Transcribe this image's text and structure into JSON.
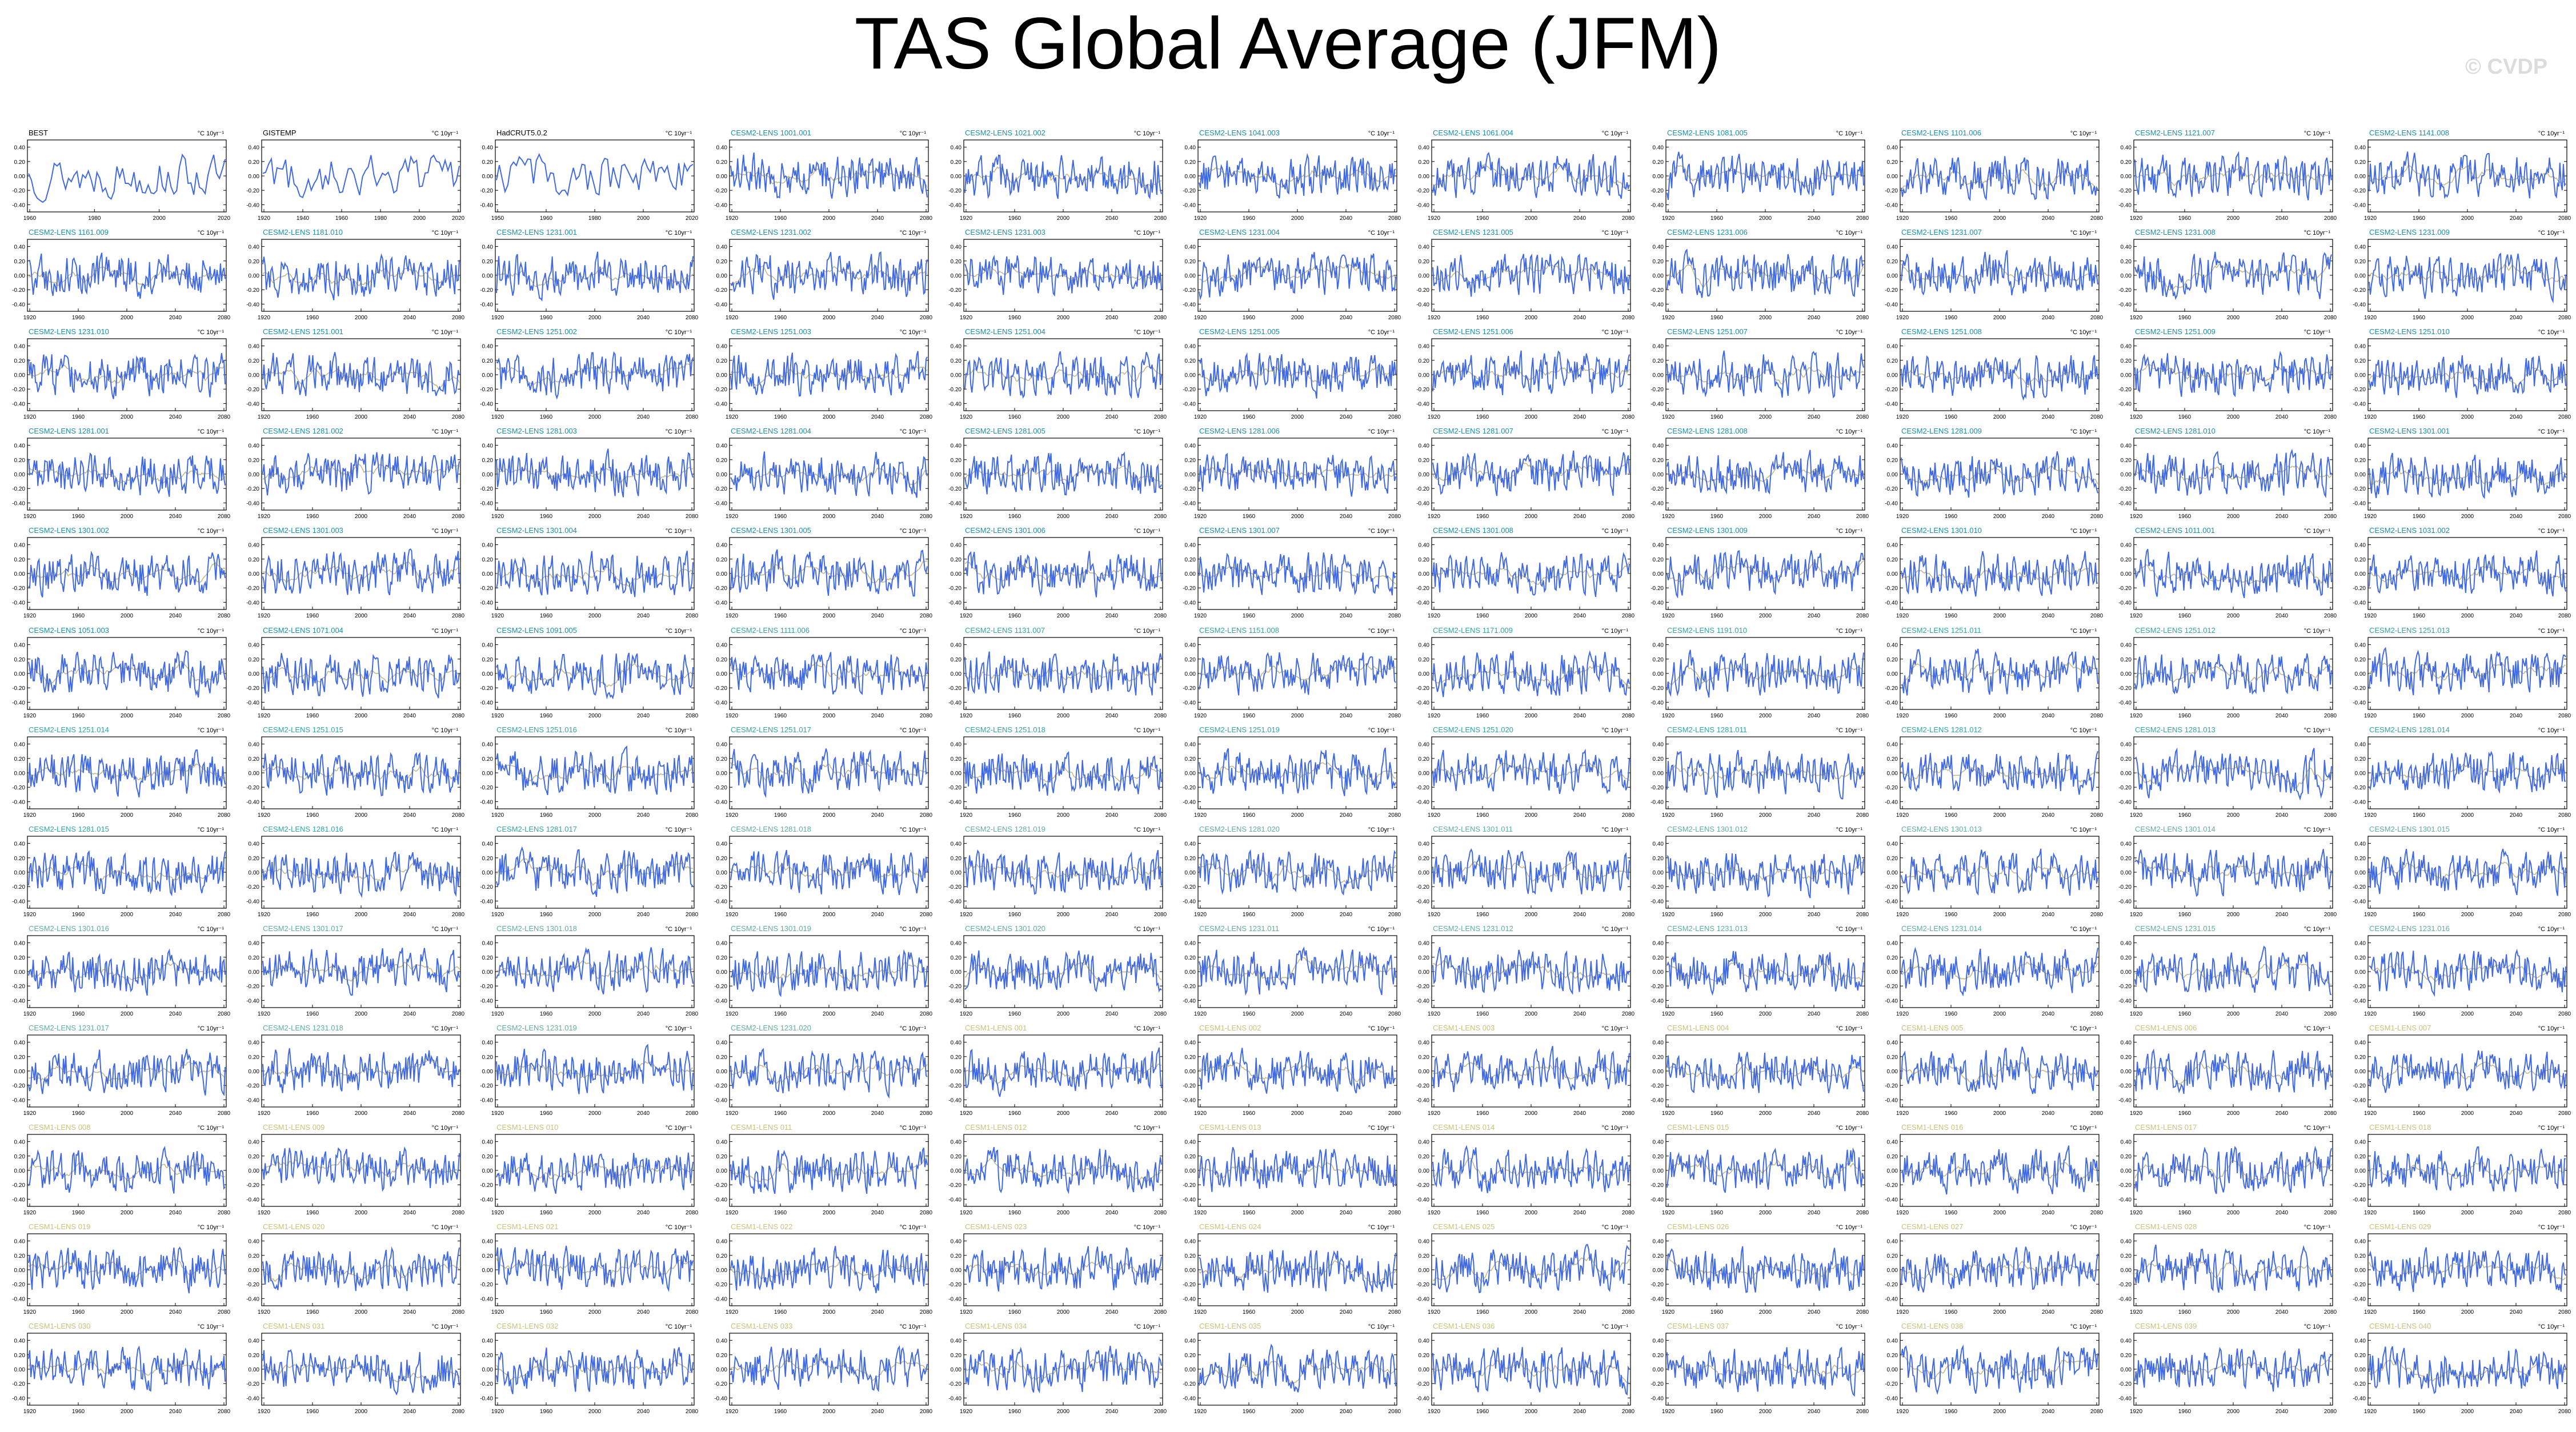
{
  "page": {
    "title": "TAS Global Average (JFM)",
    "watermark": "© CVDP"
  },
  "style": {
    "line_color": "#4169e1",
    "trend_color": "#b8a76a",
    "title_colors": {
      "observations": "#000000",
      "lens_a": "#1a8fa6",
      "lens_b": "#33a3a3",
      "lens_c": "#5fae9a",
      "lens_d": "#c8c27a"
    }
  },
  "chart_data": {
    "type": "line",
    "units": "°C 10yr⁻¹",
    "ylim": [
      -0.5,
      0.5
    ],
    "yticks": [
      "0.40",
      "0.20",
      "0.00",
      "-0.20",
      "-0.40"
    ],
    "grid": false,
    "observed_panels": [
      {
        "title": "BEST",
        "xticks": [
          "1960",
          "1980",
          "2000",
          "2020"
        ]
      },
      {
        "title": "GISTEMP",
        "xticks": [
          "1920",
          "1940",
          "1960",
          "1980",
          "2000",
          "2020"
        ]
      },
      {
        "title": "HadCRUT5.0.2",
        "xticks": [
          "1950",
          "1960",
          "1980",
          "2000",
          "2020"
        ]
      }
    ],
    "model_xticks": [
      "1920",
      "1960",
      "2000",
      "2040",
      "2080"
    ],
    "model_panel_titles": [
      "CESM2-LENS 1001.001",
      "CESM2-LENS 1021.002",
      "CESM2-LENS 1041.003",
      "CESM2-LENS 1061.004",
      "CESM2-LENS 1081.005",
      "CESM2-LENS 1101.006",
      "CESM2-LENS 1121.007",
      "CESM2-LENS 1141.008",
      "CESM2-LENS 1161.009",
      "CESM2-LENS 1181.010",
      "CESM2-LENS 1231.001",
      "CESM2-LENS 1231.002",
      "CESM2-LENS 1231.003",
      "CESM2-LENS 1231.004",
      "CESM2-LENS 1231.005",
      "CESM2-LENS 1231.006",
      "CESM2-LENS 1231.007",
      "CESM2-LENS 1231.008",
      "CESM2-LENS 1231.009",
      "CESM2-LENS 1231.010",
      "CESM2-LENS 1251.001",
      "CESM2-LENS 1251.002",
      "CESM2-LENS 1251.003",
      "CESM2-LENS 1251.004",
      "CESM2-LENS 1251.005",
      "CESM2-LENS 1251.006",
      "CESM2-LENS 1251.007",
      "CESM2-LENS 1251.008",
      "CESM2-LENS 1251.009",
      "CESM2-LENS 1251.010",
      "CESM2-LENS 1281.001",
      "CESM2-LENS 1281.002",
      "CESM2-LENS 1281.003",
      "CESM2-LENS 1281.004",
      "CESM2-LENS 1281.005",
      "CESM2-LENS 1281.006",
      "CESM2-LENS 1281.007",
      "CESM2-LENS 1281.008",
      "CESM2-LENS 1281.009",
      "CESM2-LENS 1281.010",
      "CESM2-LENS 1301.001",
      "CESM2-LENS 1301.002",
      "CESM2-LENS 1301.003",
      "CESM2-LENS 1301.004",
      "CESM2-LENS 1301.005",
      "CESM2-LENS 1301.006",
      "CESM2-LENS 1301.007",
      "CESM2-LENS 1301.008",
      "CESM2-LENS 1301.009",
      "CESM2-LENS 1301.010",
      "CESM2-LENS 1011.001",
      "CESM2-LENS 1031.002",
      "CESM2-LENS 1051.003",
      "CESM2-LENS 1071.004",
      "CESM2-LENS 1091.005",
      "CESM2-LENS 1111.006",
      "CESM2-LENS 1131.007",
      "CESM2-LENS 1151.008",
      "CESM2-LENS 1171.009",
      "CESM2-LENS 1191.010",
      "CESM2-LENS 1251.011",
      "CESM2-LENS 1251.012",
      "CESM2-LENS 1251.013",
      "CESM2-LENS 1251.014",
      "CESM2-LENS 1251.015",
      "CESM2-LENS 1251.016",
      "CESM2-LENS 1251.017",
      "CESM2-LENS 1251.018",
      "CESM2-LENS 1251.019",
      "CESM2-LENS 1251.020",
      "CESM2-LENS 1281.011",
      "CESM2-LENS 1281.012",
      "CESM2-LENS 1281.013",
      "CESM2-LENS 1281.014",
      "CESM2-LENS 1281.015",
      "CESM2-LENS 1281.016",
      "CESM2-LENS 1281.017",
      "CESM2-LENS 1281.018",
      "CESM2-LENS 1281.019",
      "CESM2-LENS 1281.020",
      "CESM2-LENS 1301.011",
      "CESM2-LENS 1301.012",
      "CESM2-LENS 1301.013",
      "CESM2-LENS 1301.014",
      "CESM2-LENS 1301.015",
      "CESM2-LENS 1301.016",
      "CESM2-LENS 1301.017",
      "CESM2-LENS 1301.018",
      "CESM2-LENS 1301.019",
      "CESM2-LENS 1301.020",
      "CESM2-LENS 1231.011",
      "CESM2-LENS 1231.012",
      "CESM2-LENS 1231.013",
      "CESM2-LENS 1231.014",
      "CESM2-LENS 1231.015",
      "CESM2-LENS 1231.016",
      "CESM2-LENS 1231.017",
      "CESM2-LENS 1231.018",
      "CESM2-LENS 1231.019",
      "CESM2-LENS 1231.020",
      "CESM1-LENS 001",
      "CESM1-LENS 002",
      "CESM1-LENS 003",
      "CESM1-LENS 004",
      "CESM1-LENS 005",
      "CESM1-LENS 006",
      "CESM1-LENS 007",
      "CESM1-LENS 008",
      "CESM1-LENS 009",
      "CESM1-LENS 010",
      "CESM1-LENS 011",
      "CESM1-LENS 012",
      "CESM1-LENS 013",
      "CESM1-LENS 014",
      "CESM1-LENS 015",
      "CESM1-LENS 016",
      "CESM1-LENS 017",
      "CESM1-LENS 018",
      "CESM1-LENS 019",
      "CESM1-LENS 020",
      "CESM1-LENS 021",
      "CESM1-LENS 022",
      "CESM1-LENS 023",
      "CESM1-LENS 024",
      "CESM1-LENS 025",
      "CESM1-LENS 026",
      "CESM1-LENS 027",
      "CESM1-LENS 028",
      "CESM1-LENS 029",
      "CESM1-LENS 030",
      "CESM1-LENS 031",
      "CESM1-LENS 032",
      "CESM1-LENS 033",
      "CESM1-LENS 034",
      "CESM1-LENS 035",
      "CESM1-LENS 036",
      "CESM1-LENS 037",
      "CESM1-LENS 038",
      "CESM1-LENS 039",
      "CESM1-LENS 040"
    ]
  }
}
